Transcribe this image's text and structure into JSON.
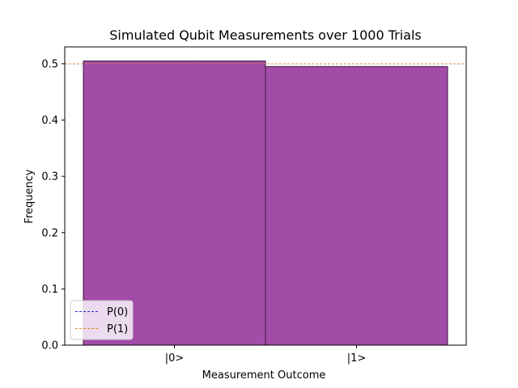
{
  "chart_data": {
    "type": "bar",
    "title": "Simulated Qubit Measurements over 1000 Trials",
    "xlabel": "Measurement Outcome",
    "ylabel": "Frequency",
    "categories": [
      "|0>",
      "|1>"
    ],
    "values": [
      0.505,
      0.495
    ],
    "ylim": [
      0,
      0.53
    ],
    "yticks": [
      "0.0",
      "0.1",
      "0.2",
      "0.3",
      "0.4",
      "0.5"
    ],
    "ytick_values": [
      0,
      0.1,
      0.2,
      0.3,
      0.4,
      0.5
    ],
    "bar_color": "#a24ca8",
    "bar_edge_color": "#3a1a3c",
    "reference_lines": [
      {
        "name": "P(0)",
        "value": 0.5,
        "color": "#2b2bd6",
        "style": "dashed"
      },
      {
        "name": "P(1)",
        "value": 0.5,
        "color": "#e08a2a",
        "style": "dashed"
      }
    ],
    "legend": {
      "placement": "lower-left",
      "entries": [
        "P(0)",
        "P(1)"
      ]
    },
    "grid": false
  }
}
